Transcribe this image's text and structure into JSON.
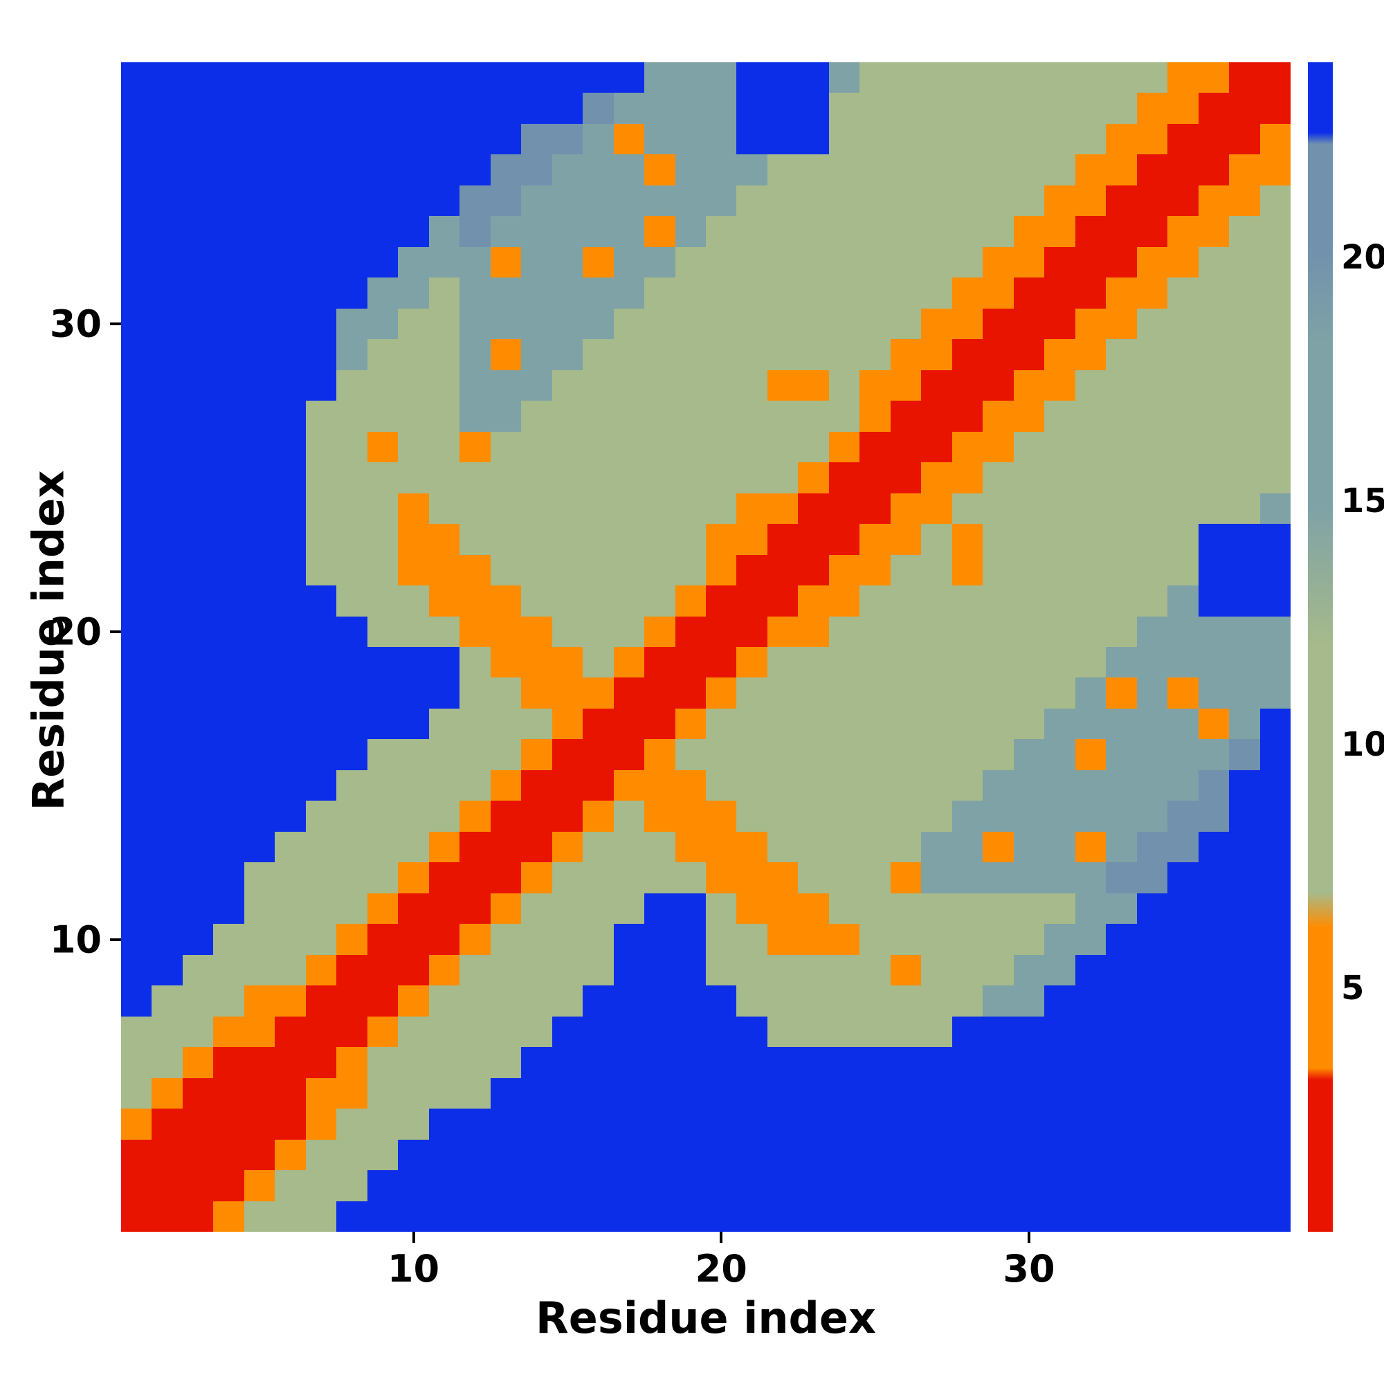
{
  "figure": {
    "background": "#ffffff"
  },
  "axes": {
    "x_label": "Residue index",
    "y_label": "Residue index",
    "x_ticks": [
      10,
      20,
      30
    ],
    "y_ticks": [
      10,
      20,
      30
    ]
  },
  "colorbar": {
    "min": 0,
    "max": 24,
    "ticks": [
      5,
      10,
      15,
      20
    ],
    "gradient_stops_bottom_to_top": [
      {
        "hex": "#e81400",
        "from": 0,
        "to": 13
      },
      {
        "hex": "#ff8c00",
        "from": 14,
        "to": 26
      },
      {
        "hex": "#a6ba8b",
        "from": 29,
        "to": 50
      },
      {
        "hex": "#7fa2a6",
        "from": 62,
        "to": 76
      },
      {
        "hex": "#7191ad",
        "from": 84,
        "to": 93
      },
      {
        "hex": "#0c2ee8",
        "from": 94,
        "to": 100
      }
    ]
  },
  "palette": {
    "R": "#e81400",
    "O": "#ff8c00",
    "G": "#a6ba8b",
    "T": "#7fa2a6",
    "S": "#7191ad",
    "B": "#0c2ee8"
  },
  "chart_data": {
    "type": "heatmap",
    "title": "",
    "xlabel": "Residue index",
    "ylabel": "Residue index",
    "n_residues": 38,
    "x_range": [
      1,
      38
    ],
    "y_range": [
      1,
      38
    ],
    "colorbar_ticks": [
      5,
      10,
      15,
      20
    ],
    "value_scale": "residue-residue distance, colorbar approx 0-24",
    "class_value_estimates": {
      "R": 2.5,
      "O": 5.5,
      "G": 10,
      "T": 15,
      "S": 18.5,
      "B": 23.5
    },
    "grid_legend": "rows listed bottom-to-top (residue 1 first); letters map to palette/class_value_estimates",
    "grid_rows_bottom_to_top": [
      "RRROGGGBBBBBBBBBBBBBBBBBBBBBBBBBBBBBBB",
      "RRRROGGGBBBBBBBBBBBBBBBBBBBBBBBBBBBBBB",
      "RRRRROGGGBBBBBBBBBBBBBBBBBBBBBBBBBBBBB",
      "ORRRRROGGGBBBBBBBBBBBBBBBBBBBBBBBBBBBB",
      "GORRRROOGGGGBBBBBBBBBBBBBBBBBBBBBBBBBB",
      "GGORRRROGGGGGBBBBBBBBBBBBBBBBBBBBBBBBB",
      "GGGOORRROGGGGGBBBBBBBGGGGGGBBBBBBBBBBB",
      "BGGGOORRROGGGGGBBBBBGGGGGGGGTTBBBBBBBB",
      "BBGGGGORRROGGGGGBBBGGGGGGOGGGTTBBBBBBB",
      "BBBGGGGORRROGGGGBBBGGOOOGGGGGGTTBBBBBB",
      "BBBBGGGGORRROGGGGBBGOOOGGGGGGGGTTBBBBB",
      "BBBBGGGGGORRROGGGGGOOOGGGOTTTTTTSSBBBB",
      "BBBBBGGGGGORRROGGGOOOGGGGGTTOTTOTSSBBB",
      "BBBBBBGGGGGORRROGOOOGGGGGGGTTTTTTTSSBB",
      "BBBBBBBGGGGGORRROOOGGGGGGGGGTTTTTTTSBB",
      "BBBBBBBBGGGGGORRROGGGGGGGGGGGTTOTTTTSB",
      "BBBBBBBBBBGGGGORRROGGGGGGGGGGGTTTTTOTB",
      "BBBBBBBBBBBGGOOORRROGGGGGGGGGGGTOTOTTT",
      "BBBBBBBBBBBGOOOGORRROGGGGGGGGGGGTTTTTT",
      "BBBBBBBBGGGOOOGGGORRROOGGGGGGGGGGTTTTT",
      "BBBBBBBGGGOOOGGGGGORRROOGGGGGGGGGGTBBB",
      "BBBBBBGGGOOOGGGGGGGORRROOGGOGGGGGGGBBB",
      "BBBBBBGGGOOGGGGGGGGOORRROOGOGGGGGGGBBB",
      "BBBBBBGGGOGGGGGGGGGGOORRROOGGGGGGGGGGT",
      "BBBBBBGGGGGGGGGGGGGGGGORRROOGGGGGGGGGG",
      "BBBBBBGGOGGOGGGGGGGGGGGORRROOGGGGGGGGG",
      "BBBBBBGGGGGTTGGGGGGGGGGGORRROOGGGGGGGG",
      "BBBBBBBGGGGTTTGGGGGGGOOGOORRROOGGGGGGG",
      "BBBBBBBTGGGTOTTGGGGGGGGGGOORRROOGGGGGG",
      "BBBBBBBTTGGTTTTTGGGGGGGGGGOORRROOGGGGG",
      "BBBBBBBBTTGTTTTTTGGGGGGGGGGOORRROOGGGG",
      "BBBBBBBBBTTTOTTOTTGGGGGGGGGGOORRROOGGG",
      "BBBBBBBBBBTSTTTTTOTGGGGGGGGGGOORRROOGG",
      "BBBBBBBBBBBSSTTTTTTTGGGGGGGGGGOORRROOG",
      "BBBBBBBBBBBBSSTTTOTTTGGGGGGGGGGOORRROO",
      "BBBBBBBBBBBBBSSTOTTTBBBGGGGGGGGGOORRRO",
      "BBBBBBBBBBBBBBBSTTTTBBBGGGGGGGGGGOORRR",
      "BBBBBBBBBBBBBBBBBTTTBBBTGGGGGGGGGGOORR"
    ]
  }
}
